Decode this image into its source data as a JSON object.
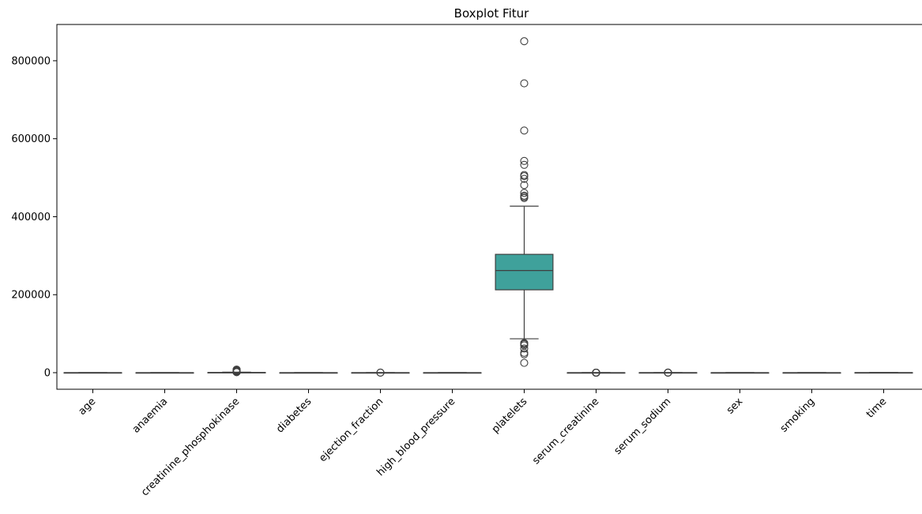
{
  "chart_data": {
    "type": "box",
    "title": "Boxplot Fitur",
    "xlabel": "",
    "ylabel": "",
    "ylim": [
      -42500,
      893000
    ],
    "y_ticks": [
      0,
      200000,
      400000,
      600000,
      800000
    ],
    "y_tick_labels": [
      "0",
      "200000",
      "400000",
      "600000",
      "800000"
    ],
    "grid": false,
    "categories": [
      "age",
      "anaemia",
      "creatinine_phosphokinase",
      "diabetes",
      "ejection_fraction",
      "high_blood_pressure",
      "platelets",
      "serum_creatinine",
      "serum_sodium",
      "sex",
      "smoking",
      "time"
    ],
    "colors": [
      "#3274a1",
      "#e1812c",
      "#3a923a",
      "#c03d3e",
      "#9372b2",
      "#845b53",
      "#3fa19b",
      "#d684bd",
      "#7f7f7f",
      "#a9aa35",
      "#2ba9c1",
      "#3274a1"
    ],
    "boxes": [
      {
        "name": "age",
        "whislo": 40,
        "q1": 51,
        "med": 60,
        "q3": 70,
        "whishi": 95,
        "fliers": []
      },
      {
        "name": "anaemia",
        "whislo": 0,
        "q1": 0,
        "med": 0,
        "q3": 1,
        "whishi": 1,
        "fliers": []
      },
      {
        "name": "creatinine_phosphokinase",
        "whislo": 23,
        "q1": 116,
        "med": 250,
        "q3": 582,
        "whishi": 1280,
        "fliers": [
          1380,
          1610,
          1876,
          2060,
          2261,
          2413,
          2522,
          2656,
          2695,
          2794,
          3964,
          3966,
          4540,
          5209,
          5882,
          7702,
          7861
        ]
      },
      {
        "name": "diabetes",
        "whislo": 0,
        "q1": 0,
        "med": 0,
        "q3": 1,
        "whishi": 1,
        "fliers": []
      },
      {
        "name": "ejection_fraction",
        "whislo": 14,
        "q1": 30,
        "med": 38,
        "q3": 45,
        "whishi": 65,
        "fliers": [
          70,
          80
        ]
      },
      {
        "name": "high_blood_pressure",
        "whislo": 0,
        "q1": 0,
        "med": 0,
        "q3": 1,
        "whishi": 1,
        "fliers": []
      },
      {
        "name": "platelets",
        "whislo": 87000,
        "q1": 212500,
        "med": 262000,
        "q3": 303500,
        "whishi": 427000,
        "fliers": [
          25100,
          47000,
          51000,
          62000,
          70000,
          73000,
          75000,
          76000,
          448000,
          451000,
          454000,
          461000,
          481000,
          497000,
          504000,
          507000,
          533000,
          543000,
          621000,
          742000,
          850000
        ]
      },
      {
        "name": "serum_creatinine",
        "whislo": 0.5,
        "q1": 0.9,
        "med": 1.1,
        "q3": 1.4,
        "whishi": 2.1,
        "fliers": [
          2.3,
          2.7,
          3.0,
          3.5,
          4.0,
          5.8,
          6.1,
          9.0,
          9.4
        ]
      },
      {
        "name": "serum_sodium",
        "whislo": 125,
        "q1": 134,
        "med": 137,
        "q3": 140,
        "whishi": 148,
        "fliers": [
          113,
          116,
          121,
          124
        ]
      },
      {
        "name": "sex",
        "whislo": 0,
        "q1": 0,
        "med": 1,
        "q3": 1,
        "whishi": 1,
        "fliers": []
      },
      {
        "name": "smoking",
        "whislo": 0,
        "q1": 0,
        "med": 0,
        "q3": 1,
        "whishi": 1,
        "fliers": []
      },
      {
        "name": "time",
        "whislo": 4,
        "q1": 73,
        "med": 115,
        "q3": 203,
        "whishi": 285,
        "fliers": []
      }
    ]
  }
}
